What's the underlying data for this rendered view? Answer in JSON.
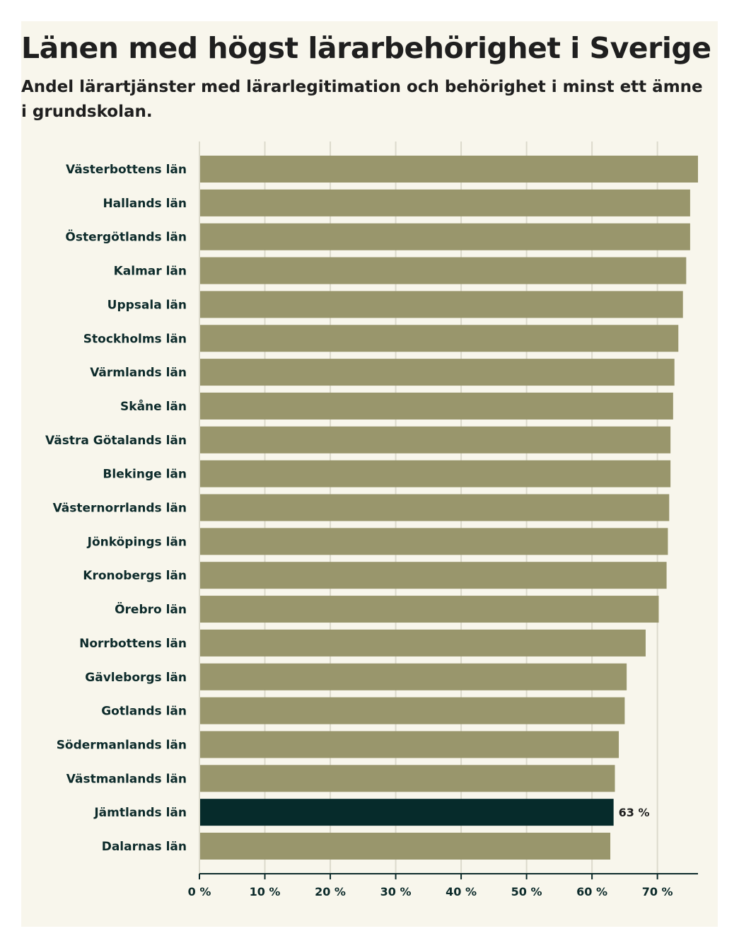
{
  "chart_data": {
    "type": "bar",
    "orientation": "horizontal",
    "title": "Länen med högst lärarbehörighet i Sverige",
    "subtitle": "Andel lärartjänster med lärarlegitimation och behörighet i minst ett ämne i grundskolan.",
    "categories": [
      "Västerbottens län",
      "Hallands län",
      "Östergötlands län",
      "Kalmar län",
      "Uppsala län",
      "Stockholms län",
      "Värmlands län",
      "Skåne län",
      "Västra Götalands län",
      "Blekinge län",
      "Västernorrlands län",
      "Jönköpings län",
      "Kronobergs län",
      "Örebro län",
      "Norrbottens län",
      "Gävleborgs län",
      "Gotlands län",
      "Södermanlands län",
      "Västmanlands län",
      "Jämtlands län",
      "Dalarnas län"
    ],
    "values": [
      76.2,
      75.0,
      75.0,
      74.4,
      73.9,
      73.2,
      72.6,
      72.4,
      72.0,
      72.0,
      71.8,
      71.6,
      71.4,
      70.2,
      68.2,
      65.3,
      65.0,
      64.1,
      63.5,
      63.3,
      62.8
    ],
    "highlight_index": 19,
    "highlight_label": "63 %",
    "xlim": [
      0,
      76.2
    ],
    "xticks": [
      0,
      10,
      20,
      30,
      40,
      50,
      60,
      70
    ],
    "xtick_labels": [
      "0 %",
      "10 %",
      "20 %",
      "30 %",
      "40 %",
      "50 %",
      "60 %",
      "70 %"
    ],
    "grid": true,
    "colors": {
      "bar": "#99966c",
      "highlight": "#062b2b",
      "grid": "#dcdacc",
      "axis": "#0d2b2b",
      "background": "#f8f6ec"
    }
  }
}
